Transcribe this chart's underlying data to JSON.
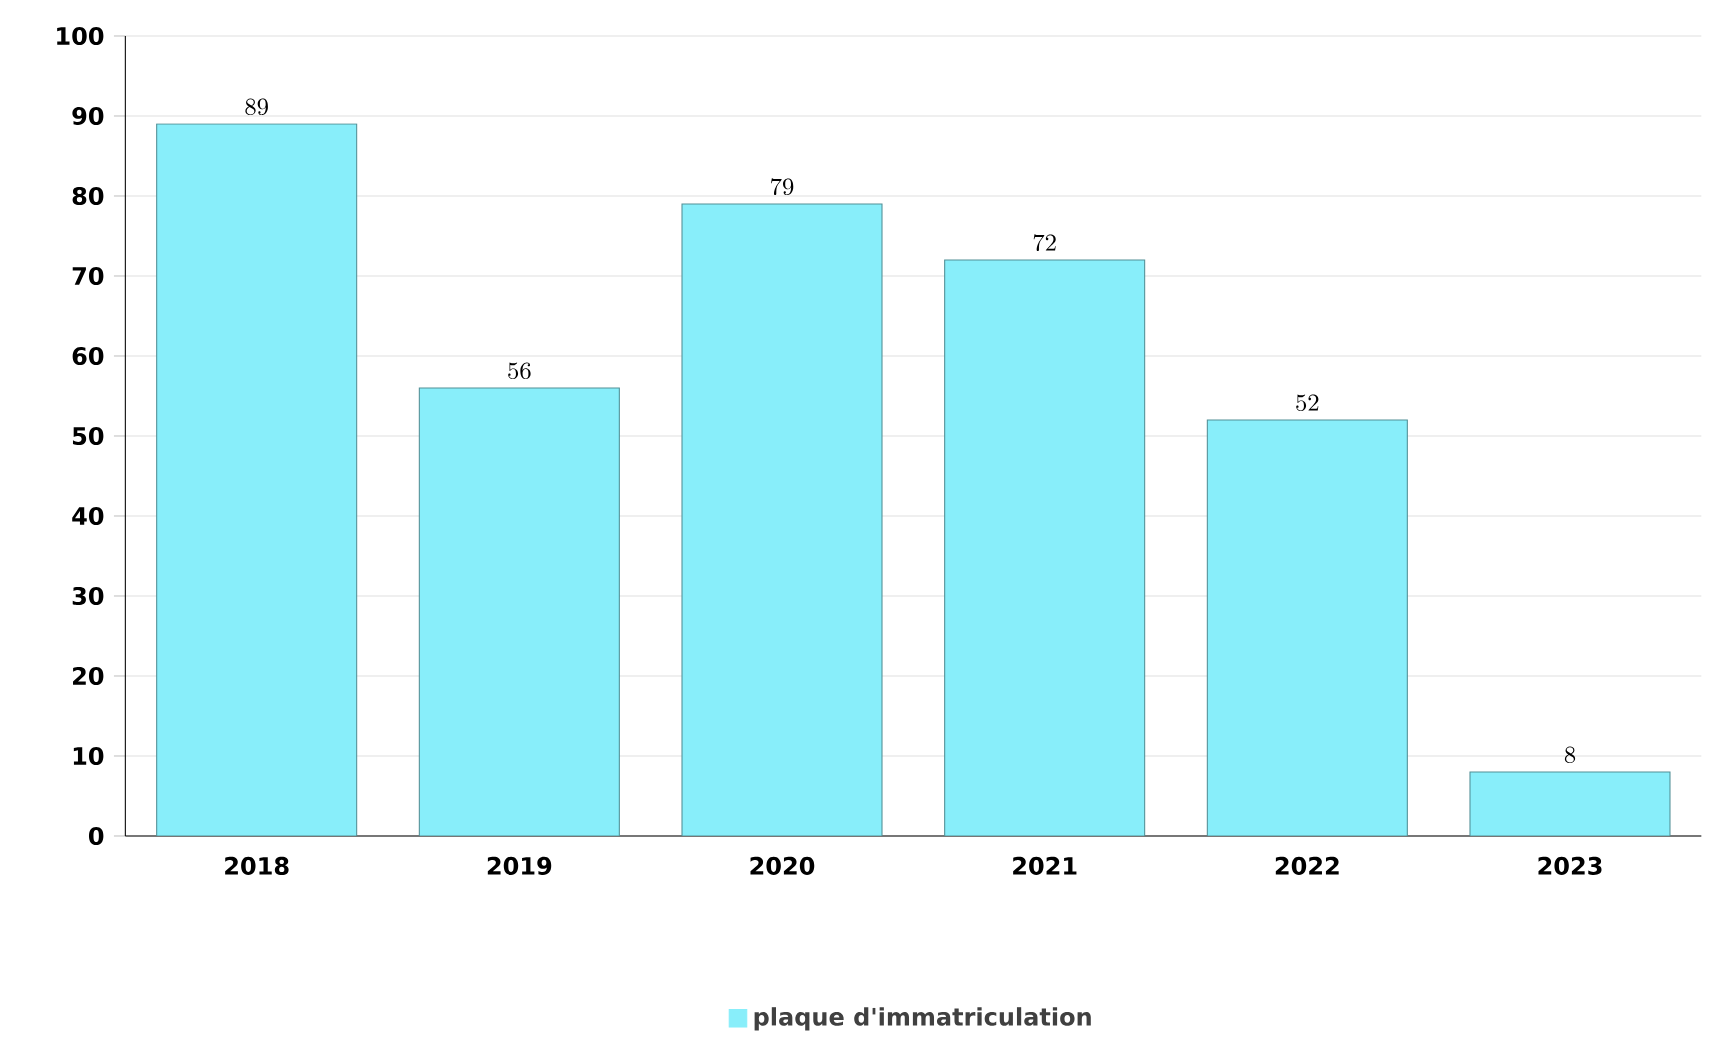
{
  "chart_data": {
    "type": "bar",
    "categories": [
      "2018",
      "2019",
      "2020",
      "2021",
      "2022",
      "2023"
    ],
    "series": [
      {
        "name": "plaque d'immatriculation",
        "color": "#88eefa",
        "values": [
          89,
          56,
          79,
          72,
          52,
          8
        ]
      }
    ],
    "ylim": [
      0,
      100
    ],
    "yticks": [
      0,
      10,
      20,
      30,
      40,
      50,
      60,
      70,
      80,
      90,
      100
    ],
    "grid": "y",
    "legend": "bottom",
    "data_labels": true
  }
}
